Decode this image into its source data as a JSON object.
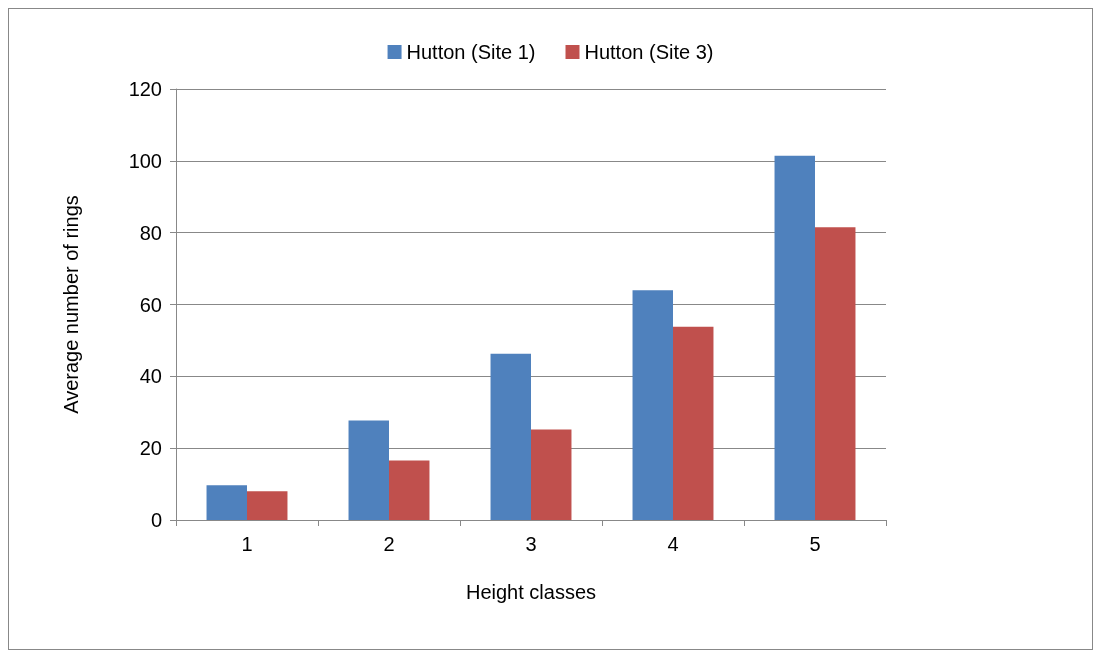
{
  "chart_data": {
    "type": "bar",
    "xlabel": "Height classes",
    "ylabel": "Average number of rings",
    "categories": [
      "1",
      "2",
      "3",
      "4",
      "5"
    ],
    "series": [
      {
        "name": "Hutton (Site 1)",
        "color": "#4f81bd",
        "values": [
          9.7,
          27.7,
          46.3,
          64.0,
          101.4
        ]
      },
      {
        "name": "Hutton (Site 3)",
        "color": "#c0504d",
        "values": [
          8.0,
          16.6,
          25.2,
          53.8,
          81.5
        ]
      }
    ],
    "ylim": [
      0,
      120
    ],
    "yticks": [
      0,
      20,
      40,
      60,
      80,
      100,
      120
    ],
    "grid": "y",
    "legend": "top"
  }
}
